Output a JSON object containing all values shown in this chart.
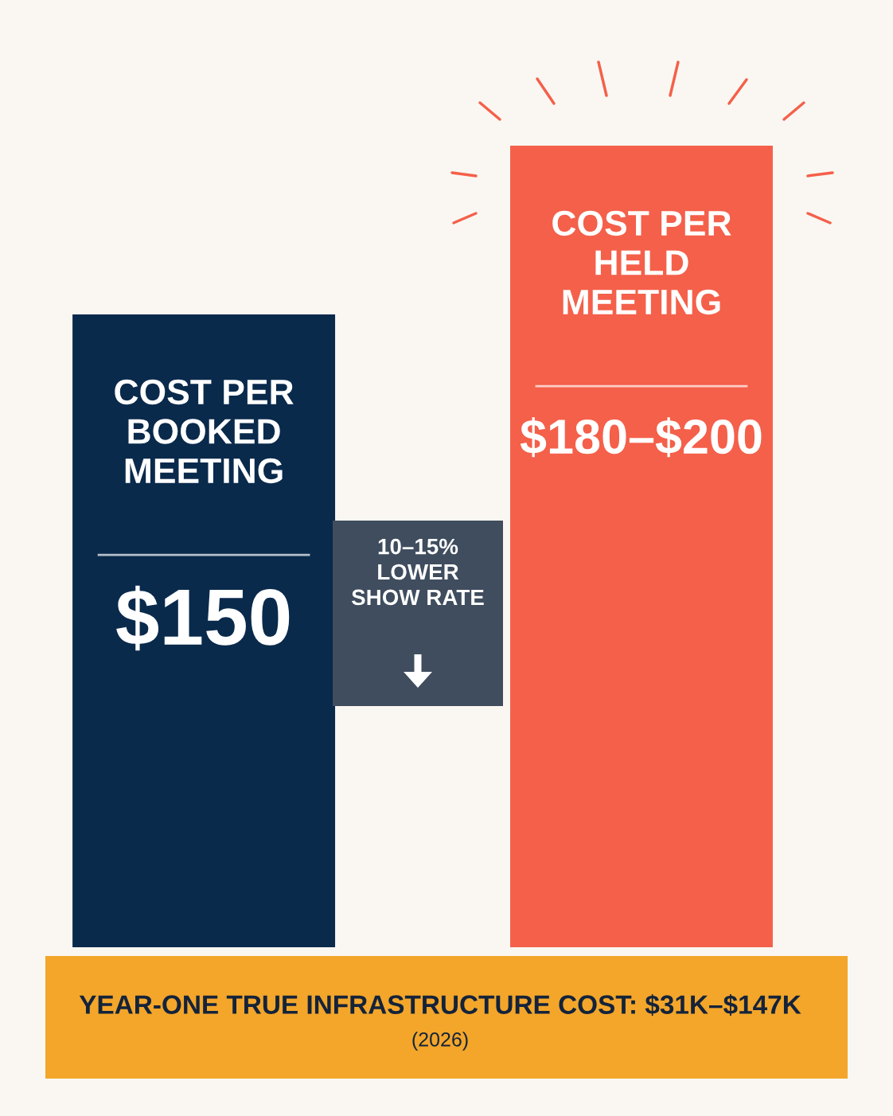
{
  "chart_data": {
    "type": "bar",
    "categories": [
      "COST PER\nBOOKED\nMEETING",
      "COST PER\nHELD\nMEETING"
    ],
    "values": [
      150,
      190
    ],
    "colors": [
      "#0a2a4c",
      "#f4604a"
    ],
    "value_labels": [
      "$150",
      "$180–$200"
    ],
    "annotations": [
      "10–15%\nLOWER\nSHOW RATE",
      "YEAR-ONE TRUE INFRASTRUCTURE COST: $31K–$147K",
      "(2026)"
    ],
    "tick_labels": false
  }
}
